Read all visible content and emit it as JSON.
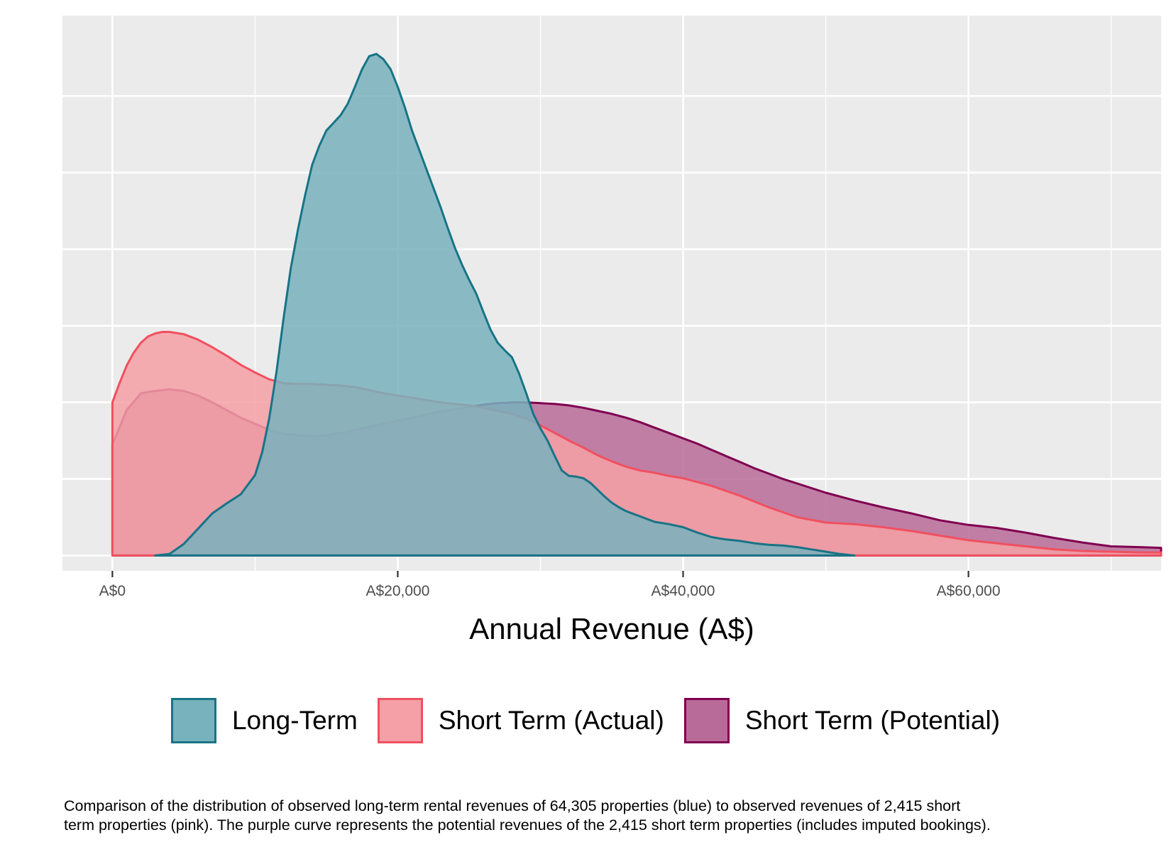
{
  "chart_data": {
    "type": "area",
    "title": "",
    "xlabel": "Annual Revenue (A$)",
    "ylabel": "",
    "xlim": [
      -3500,
      73500
    ],
    "ylim": [
      -2e-06,
      7.05e-05
    ],
    "x_ticks": [
      0,
      20000,
      40000,
      60000
    ],
    "x_tick_labels": [
      "A$0",
      "A$20,000",
      "A$40,000",
      "A$60,000"
    ],
    "x_minor_ticks": [
      10000,
      30000,
      50000,
      70000
    ],
    "y_gridlines": [
      0,
      1e-05,
      2e-05,
      3e-05,
      4e-05,
      5e-05,
      6e-05
    ],
    "y_tick_labels": [],
    "grid": true,
    "legend_position": "bottom",
    "series": [
      {
        "name": "Short Term (Potential)",
        "fill": "#b86b98",
        "stroke": "#800050",
        "points": [
          [
            0,
            1.45e-05
          ],
          [
            1000,
            1.9e-05
          ],
          [
            2000,
            2.12e-05
          ],
          [
            3000,
            2.15e-05
          ],
          [
            4000,
            2.17e-05
          ],
          [
            5000,
            2.15e-05
          ],
          [
            6000,
            2.09e-05
          ],
          [
            7000,
            2e-05
          ],
          [
            8000,
            1.9e-05
          ],
          [
            9000,
            1.8e-05
          ],
          [
            10000,
            1.72e-05
          ],
          [
            11000,
            1.64e-05
          ],
          [
            12000,
            1.59e-05
          ],
          [
            13000,
            1.57e-05
          ],
          [
            14000,
            1.56e-05
          ],
          [
            15000,
            1.57e-05
          ],
          [
            16000,
            1.6e-05
          ],
          [
            17000,
            1.64e-05
          ],
          [
            18000,
            1.68e-05
          ],
          [
            19000,
            1.72e-05
          ],
          [
            20000,
            1.76e-05
          ],
          [
            21000,
            1.8e-05
          ],
          [
            22000,
            1.84e-05
          ],
          [
            23000,
            1.88e-05
          ],
          [
            24000,
            1.91e-05
          ],
          [
            25000,
            1.94e-05
          ],
          [
            26000,
            1.97e-05
          ],
          [
            27000,
            1.99e-05
          ],
          [
            28000,
            2e-05
          ],
          [
            29000,
            2e-05
          ],
          [
            30000,
            1.99e-05
          ],
          [
            31000,
            1.98e-05
          ],
          [
            32000,
            1.96e-05
          ],
          [
            33000,
            1.93e-05
          ],
          [
            34000,
            1.89e-05
          ],
          [
            35000,
            1.85e-05
          ],
          [
            36000,
            1.8e-05
          ],
          [
            37000,
            1.74e-05
          ],
          [
            38000,
            1.67e-05
          ],
          [
            39000,
            1.6e-05
          ],
          [
            40000,
            1.53e-05
          ],
          [
            41000,
            1.46e-05
          ],
          [
            42000,
            1.38e-05
          ],
          [
            43000,
            1.3e-05
          ],
          [
            44000,
            1.22e-05
          ],
          [
            45000,
            1.14e-05
          ],
          [
            46000,
            1.07e-05
          ],
          [
            47000,
            1e-05
          ],
          [
            48000,
            9.4e-06
          ],
          [
            49000,
            8.8e-06
          ],
          [
            50000,
            8.2e-06
          ],
          [
            52000,
            7.2e-06
          ],
          [
            54000,
            6.3e-06
          ],
          [
            56000,
            5.5e-06
          ],
          [
            58000,
            4.6e-06
          ],
          [
            60000,
            4e-06
          ],
          [
            62000,
            3.6e-06
          ],
          [
            64000,
            3e-06
          ],
          [
            66000,
            2.3e-06
          ],
          [
            68000,
            1.7e-06
          ],
          [
            70000,
            1.2e-06
          ],
          [
            72000,
            1.1e-06
          ],
          [
            73500,
            1e-06
          ]
        ]
      },
      {
        "name": "Short Term (Actual)",
        "fill": "#f5a0a6",
        "stroke": "#f0505f",
        "points": [
          [
            0,
            2e-05
          ],
          [
            500,
            2.25e-05
          ],
          [
            1000,
            2.48e-05
          ],
          [
            1500,
            2.65e-05
          ],
          [
            2000,
            2.78e-05
          ],
          [
            2500,
            2.86e-05
          ],
          [
            3000,
            2.9e-05
          ],
          [
            3500,
            2.92e-05
          ],
          [
            4000,
            2.92e-05
          ],
          [
            5000,
            2.89e-05
          ],
          [
            6000,
            2.82e-05
          ],
          [
            7000,
            2.72e-05
          ],
          [
            8000,
            2.61e-05
          ],
          [
            9000,
            2.49e-05
          ],
          [
            10000,
            2.39e-05
          ],
          [
            11000,
            2.3e-05
          ],
          [
            12000,
            2.25e-05
          ],
          [
            13000,
            2.24e-05
          ],
          [
            14000,
            2.24e-05
          ],
          [
            15000,
            2.23e-05
          ],
          [
            16000,
            2.22e-05
          ],
          [
            17000,
            2.2e-05
          ],
          [
            18000,
            2.16e-05
          ],
          [
            19000,
            2.12e-05
          ],
          [
            20000,
            2.09e-05
          ],
          [
            21000,
            2.06e-05
          ],
          [
            22000,
            2.03e-05
          ],
          [
            23000,
            2e-05
          ],
          [
            24000,
            1.98e-05
          ],
          [
            25000,
            1.96e-05
          ],
          [
            26000,
            1.93e-05
          ],
          [
            27000,
            1.89e-05
          ],
          [
            28000,
            1.85e-05
          ],
          [
            29000,
            1.79e-05
          ],
          [
            30000,
            1.7e-05
          ],
          [
            31000,
            1.6e-05
          ],
          [
            32000,
            1.5e-05
          ],
          [
            33000,
            1.41e-05
          ],
          [
            34000,
            1.31e-05
          ],
          [
            35000,
            1.23e-05
          ],
          [
            36000,
            1.16e-05
          ],
          [
            37000,
            1.11e-05
          ],
          [
            38000,
            1.08e-05
          ],
          [
            39000,
            1.04e-05
          ],
          [
            40000,
            1.01e-05
          ],
          [
            42000,
            9.1e-06
          ],
          [
            44000,
            7.8e-06
          ],
          [
            46000,
            6.3e-06
          ],
          [
            48000,
            5e-06
          ],
          [
            50000,
            4.3e-06
          ],
          [
            52000,
            4.1e-06
          ],
          [
            54000,
            3.7e-06
          ],
          [
            56000,
            3.2e-06
          ],
          [
            58000,
            2.6e-06
          ],
          [
            60000,
            2e-06
          ],
          [
            62000,
            1.6e-06
          ],
          [
            64000,
            1.2e-06
          ],
          [
            66000,
            8e-07
          ],
          [
            68000,
            6e-07
          ],
          [
            70000,
            5e-07
          ],
          [
            72000,
            4e-07
          ],
          [
            73500,
            4e-07
          ]
        ]
      },
      {
        "name": "Long-Term",
        "fill": "#78b2bd",
        "stroke": "#177486",
        "points": [
          [
            3000,
            0
          ],
          [
            4000,
            2e-07
          ],
          [
            5000,
            1.5e-06
          ],
          [
            6000,
            3.5e-06
          ],
          [
            7000,
            5.5e-06
          ],
          [
            8000,
            6.8e-06
          ],
          [
            9000,
            8e-06
          ],
          [
            10000,
            1.05e-05
          ],
          [
            10500,
            1.35e-05
          ],
          [
            11000,
            1.8e-05
          ],
          [
            11500,
            2.4e-05
          ],
          [
            12000,
            3.1e-05
          ],
          [
            12500,
            3.75e-05
          ],
          [
            13000,
            4.25e-05
          ],
          [
            13500,
            4.7e-05
          ],
          [
            14000,
            5.1e-05
          ],
          [
            14500,
            5.35e-05
          ],
          [
            15000,
            5.55e-05
          ],
          [
            15500,
            5.65e-05
          ],
          [
            16000,
            5.75e-05
          ],
          [
            16500,
            5.9e-05
          ],
          [
            17000,
            6.12e-05
          ],
          [
            17500,
            6.35e-05
          ],
          [
            18000,
            6.52e-05
          ],
          [
            18500,
            6.55e-05
          ],
          [
            19000,
            6.48e-05
          ],
          [
            19500,
            6.35e-05
          ],
          [
            20000,
            6.12e-05
          ],
          [
            20500,
            5.85e-05
          ],
          [
            21000,
            5.55e-05
          ],
          [
            21500,
            5.3e-05
          ],
          [
            22000,
            5.05e-05
          ],
          [
            22500,
            4.8e-05
          ],
          [
            23000,
            4.55e-05
          ],
          [
            23500,
            4.28e-05
          ],
          [
            24000,
            4.02e-05
          ],
          [
            24500,
            3.8e-05
          ],
          [
            25000,
            3.6e-05
          ],
          [
            25500,
            3.42e-05
          ],
          [
            26000,
            3.18e-05
          ],
          [
            26500,
            2.95e-05
          ],
          [
            27000,
            2.78e-05
          ],
          [
            27500,
            2.68e-05
          ],
          [
            28000,
            2.59e-05
          ],
          [
            28500,
            2.38e-05
          ],
          [
            29000,
            2.12e-05
          ],
          [
            29500,
            1.85e-05
          ],
          [
            30000,
            1.66e-05
          ],
          [
            30500,
            1.5e-05
          ],
          [
            31000,
            1.3e-05
          ],
          [
            31500,
            1.11e-05
          ],
          [
            32000,
            1.04e-05
          ],
          [
            32500,
            1.03e-05
          ],
          [
            33000,
            1.01e-05
          ],
          [
            33500,
            9.5e-06
          ],
          [
            34000,
            8.6e-06
          ],
          [
            34500,
            7.7e-06
          ],
          [
            35000,
            6.9e-06
          ],
          [
            35500,
            6.3e-06
          ],
          [
            36000,
            5.8e-06
          ],
          [
            37000,
            5.1e-06
          ],
          [
            38000,
            4.4e-06
          ],
          [
            39000,
            4.1e-06
          ],
          [
            40000,
            3.7e-06
          ],
          [
            41000,
            3e-06
          ],
          [
            42000,
            2.4e-06
          ],
          [
            43000,
            2.1e-06
          ],
          [
            44000,
            1.9e-06
          ],
          [
            45000,
            1.6e-06
          ],
          [
            46000,
            1.4e-06
          ],
          [
            47000,
            1.3e-06
          ],
          [
            48000,
            1.1e-06
          ],
          [
            49000,
            8e-07
          ],
          [
            50000,
            5e-07
          ],
          [
            51000,
            2e-07
          ],
          [
            52000,
            0
          ]
        ]
      }
    ],
    "caption": [
      "Comparison of the distribution of observed long-term rental revenues of 64,305 properties (blue) to observed revenues of  2,415 short",
      "term properties (pink).  The purple curve  represents the potential revenues of the 2,415 short term  properties (includes imputed bookings)."
    ]
  },
  "legend": {
    "items": [
      {
        "label": "Long-Term",
        "fill": "#78b2bd",
        "stroke": "#177486"
      },
      {
        "label": "Short Term (Actual)",
        "fill": "#f5a0a6",
        "stroke": "#f0505f"
      },
      {
        "label": "Short Term (Potential)",
        "fill": "#b86b98",
        "stroke": "#800050"
      }
    ]
  }
}
